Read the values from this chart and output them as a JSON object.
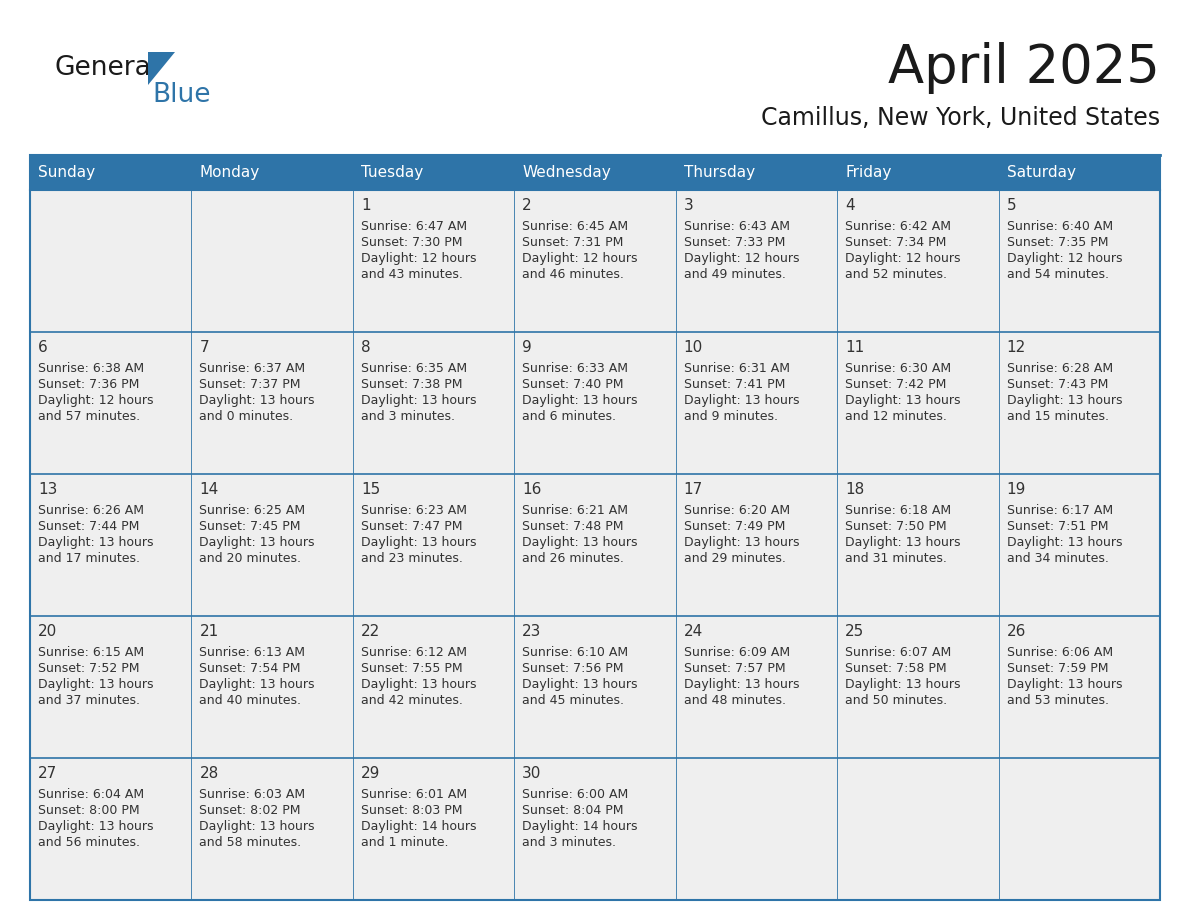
{
  "title": "April 2025",
  "subtitle": "Camillus, New York, United States",
  "header_bg": "#2E74A8",
  "header_text_color": "#FFFFFF",
  "cell_bg": "#EFEFEF",
  "border_color": "#2E74A8",
  "text_color": "#333333",
  "day_names": [
    "Sunday",
    "Monday",
    "Tuesday",
    "Wednesday",
    "Thursday",
    "Friday",
    "Saturday"
  ],
  "days": [
    {
      "row": 0,
      "col": 0,
      "num": "",
      "sunrise": "",
      "sunset": "",
      "daylight1": "",
      "daylight2": ""
    },
    {
      "row": 0,
      "col": 1,
      "num": "",
      "sunrise": "",
      "sunset": "",
      "daylight1": "",
      "daylight2": ""
    },
    {
      "row": 0,
      "col": 2,
      "num": "1",
      "sunrise": "6:47 AM",
      "sunset": "7:30 PM",
      "daylight1": "Daylight: 12 hours",
      "daylight2": "and 43 minutes."
    },
    {
      "row": 0,
      "col": 3,
      "num": "2",
      "sunrise": "6:45 AM",
      "sunset": "7:31 PM",
      "daylight1": "Daylight: 12 hours",
      "daylight2": "and 46 minutes."
    },
    {
      "row": 0,
      "col": 4,
      "num": "3",
      "sunrise": "6:43 AM",
      "sunset": "7:33 PM",
      "daylight1": "Daylight: 12 hours",
      "daylight2": "and 49 minutes."
    },
    {
      "row": 0,
      "col": 5,
      "num": "4",
      "sunrise": "6:42 AM",
      "sunset": "7:34 PM",
      "daylight1": "Daylight: 12 hours",
      "daylight2": "and 52 minutes."
    },
    {
      "row": 0,
      "col": 6,
      "num": "5",
      "sunrise": "6:40 AM",
      "sunset": "7:35 PM",
      "daylight1": "Daylight: 12 hours",
      "daylight2": "and 54 minutes."
    },
    {
      "row": 1,
      "col": 0,
      "num": "6",
      "sunrise": "6:38 AM",
      "sunset": "7:36 PM",
      "daylight1": "Daylight: 12 hours",
      "daylight2": "and 57 minutes."
    },
    {
      "row": 1,
      "col": 1,
      "num": "7",
      "sunrise": "6:37 AM",
      "sunset": "7:37 PM",
      "daylight1": "Daylight: 13 hours",
      "daylight2": "and 0 minutes."
    },
    {
      "row": 1,
      "col": 2,
      "num": "8",
      "sunrise": "6:35 AM",
      "sunset": "7:38 PM",
      "daylight1": "Daylight: 13 hours",
      "daylight2": "and 3 minutes."
    },
    {
      "row": 1,
      "col": 3,
      "num": "9",
      "sunrise": "6:33 AM",
      "sunset": "7:40 PM",
      "daylight1": "Daylight: 13 hours",
      "daylight2": "and 6 minutes."
    },
    {
      "row": 1,
      "col": 4,
      "num": "10",
      "sunrise": "6:31 AM",
      "sunset": "7:41 PM",
      "daylight1": "Daylight: 13 hours",
      "daylight2": "and 9 minutes."
    },
    {
      "row": 1,
      "col": 5,
      "num": "11",
      "sunrise": "6:30 AM",
      "sunset": "7:42 PM",
      "daylight1": "Daylight: 13 hours",
      "daylight2": "and 12 minutes."
    },
    {
      "row": 1,
      "col": 6,
      "num": "12",
      "sunrise": "6:28 AM",
      "sunset": "7:43 PM",
      "daylight1": "Daylight: 13 hours",
      "daylight2": "and 15 minutes."
    },
    {
      "row": 2,
      "col": 0,
      "num": "13",
      "sunrise": "6:26 AM",
      "sunset": "7:44 PM",
      "daylight1": "Daylight: 13 hours",
      "daylight2": "and 17 minutes."
    },
    {
      "row": 2,
      "col": 1,
      "num": "14",
      "sunrise": "6:25 AM",
      "sunset": "7:45 PM",
      "daylight1": "Daylight: 13 hours",
      "daylight2": "and 20 minutes."
    },
    {
      "row": 2,
      "col": 2,
      "num": "15",
      "sunrise": "6:23 AM",
      "sunset": "7:47 PM",
      "daylight1": "Daylight: 13 hours",
      "daylight2": "and 23 minutes."
    },
    {
      "row": 2,
      "col": 3,
      "num": "16",
      "sunrise": "6:21 AM",
      "sunset": "7:48 PM",
      "daylight1": "Daylight: 13 hours",
      "daylight2": "and 26 minutes."
    },
    {
      "row": 2,
      "col": 4,
      "num": "17",
      "sunrise": "6:20 AM",
      "sunset": "7:49 PM",
      "daylight1": "Daylight: 13 hours",
      "daylight2": "and 29 minutes."
    },
    {
      "row": 2,
      "col": 5,
      "num": "18",
      "sunrise": "6:18 AM",
      "sunset": "7:50 PM",
      "daylight1": "Daylight: 13 hours",
      "daylight2": "and 31 minutes."
    },
    {
      "row": 2,
      "col": 6,
      "num": "19",
      "sunrise": "6:17 AM",
      "sunset": "7:51 PM",
      "daylight1": "Daylight: 13 hours",
      "daylight2": "and 34 minutes."
    },
    {
      "row": 3,
      "col": 0,
      "num": "20",
      "sunrise": "6:15 AM",
      "sunset": "7:52 PM",
      "daylight1": "Daylight: 13 hours",
      "daylight2": "and 37 minutes."
    },
    {
      "row": 3,
      "col": 1,
      "num": "21",
      "sunrise": "6:13 AM",
      "sunset": "7:54 PM",
      "daylight1": "Daylight: 13 hours",
      "daylight2": "and 40 minutes."
    },
    {
      "row": 3,
      "col": 2,
      "num": "22",
      "sunrise": "6:12 AM",
      "sunset": "7:55 PM",
      "daylight1": "Daylight: 13 hours",
      "daylight2": "and 42 minutes."
    },
    {
      "row": 3,
      "col": 3,
      "num": "23",
      "sunrise": "6:10 AM",
      "sunset": "7:56 PM",
      "daylight1": "Daylight: 13 hours",
      "daylight2": "and 45 minutes."
    },
    {
      "row": 3,
      "col": 4,
      "num": "24",
      "sunrise": "6:09 AM",
      "sunset": "7:57 PM",
      "daylight1": "Daylight: 13 hours",
      "daylight2": "and 48 minutes."
    },
    {
      "row": 3,
      "col": 5,
      "num": "25",
      "sunrise": "6:07 AM",
      "sunset": "7:58 PM",
      "daylight1": "Daylight: 13 hours",
      "daylight2": "and 50 minutes."
    },
    {
      "row": 3,
      "col": 6,
      "num": "26",
      "sunrise": "6:06 AM",
      "sunset": "7:59 PM",
      "daylight1": "Daylight: 13 hours",
      "daylight2": "and 53 minutes."
    },
    {
      "row": 4,
      "col": 0,
      "num": "27",
      "sunrise": "6:04 AM",
      "sunset": "8:00 PM",
      "daylight1": "Daylight: 13 hours",
      "daylight2": "and 56 minutes."
    },
    {
      "row": 4,
      "col": 1,
      "num": "28",
      "sunrise": "6:03 AM",
      "sunset": "8:02 PM",
      "daylight1": "Daylight: 13 hours",
      "daylight2": "and 58 minutes."
    },
    {
      "row": 4,
      "col": 2,
      "num": "29",
      "sunrise": "6:01 AM",
      "sunset": "8:03 PM",
      "daylight1": "Daylight: 14 hours",
      "daylight2": "and 1 minute."
    },
    {
      "row": 4,
      "col": 3,
      "num": "30",
      "sunrise": "6:00 AM",
      "sunset": "8:04 PM",
      "daylight1": "Daylight: 14 hours",
      "daylight2": "and 3 minutes."
    },
    {
      "row": 4,
      "col": 4,
      "num": "",
      "sunrise": "",
      "sunset": "",
      "daylight1": "",
      "daylight2": ""
    },
    {
      "row": 4,
      "col": 5,
      "num": "",
      "sunrise": "",
      "sunset": "",
      "daylight1": "",
      "daylight2": ""
    },
    {
      "row": 4,
      "col": 6,
      "num": "",
      "sunrise": "",
      "sunset": "",
      "daylight1": "",
      "daylight2": ""
    }
  ]
}
